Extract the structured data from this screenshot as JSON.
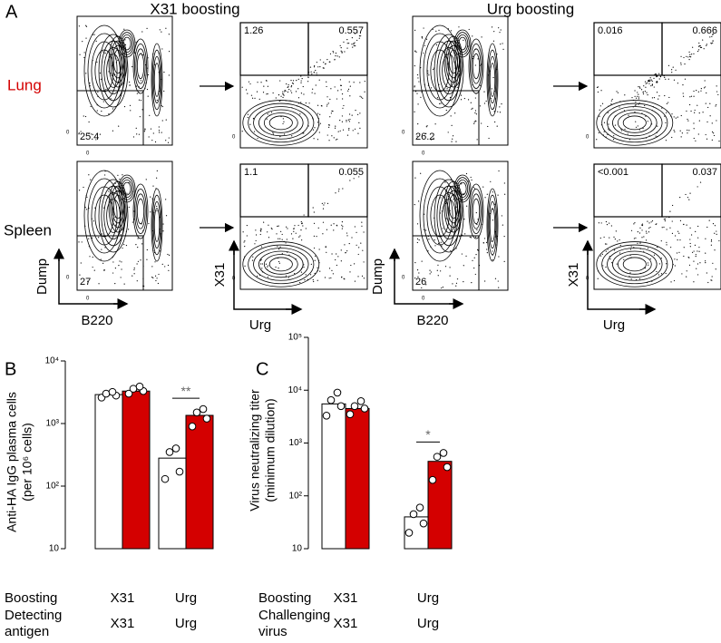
{
  "panel_a": {
    "label": "A",
    "columns": [
      "X31 boosting",
      "Urg boosting"
    ],
    "rows": [
      "Lung",
      "Spleen"
    ],
    "zero_label": "0",
    "axis_labels": {
      "dump": "Dump",
      "b220": "B220",
      "x31": "X31",
      "urg": "Urg"
    },
    "plots": [
      {
        "gate": "25.4",
        "upper_left": "1.26",
        "upper_right": "0.557"
      },
      {
        "gate": "26.2",
        "upper_left": "0.016",
        "upper_right": "0.666"
      },
      {
        "gate": "27",
        "upper_left": "1.1",
        "upper_right": "0.055"
      },
      {
        "gate": "26",
        "upper_left": "<0.001",
        "upper_right": "0.037"
      }
    ]
  },
  "chart_data": [
    {
      "type": "bar",
      "title": "B",
      "log_scale": true,
      "ylabel": [
        "Anti-HA IgG plasma cells",
        "(per 10⁶ cells)"
      ],
      "ylim": [
        10,
        10000
      ],
      "yticks": [
        {
          "value": 10000,
          "label": "10⁴"
        },
        {
          "value": 1000,
          "label": "10³"
        },
        {
          "value": 100,
          "label": "10²"
        },
        10
      ],
      "x_rows": [
        {
          "label": [
            "Boosting"
          ],
          "values": [
            "X31",
            "Urg"
          ]
        },
        {
          "label": [
            "Detecting",
            "antigen"
          ],
          "values": [
            "X31",
            "Urg"
          ]
        }
      ],
      "series": [
        {
          "color": "#ffffff",
          "values": [
            2900,
            280
          ],
          "points": [
            [
              2600,
              2800,
              3000,
              3200
            ],
            [
              130,
              170,
              350,
              400
            ]
          ]
        },
        {
          "color": "#d40000",
          "values": [
            3300,
            1350
          ],
          "points": [
            [
              3000,
              3300,
              3600,
              3900
            ],
            [
              900,
              1200,
              1500,
              1700
            ]
          ]
        }
      ],
      "significance": [
        null,
        "**"
      ]
    },
    {
      "type": "bar",
      "title": "C",
      "log_scale": true,
      "ylabel": [
        "Virus neutralizing titer",
        "(minimum dilution)"
      ],
      "ylim": [
        10,
        100000
      ],
      "yticks": [
        {
          "value": 100000,
          "label": "10⁵"
        },
        {
          "value": 10000,
          "label": "10⁴"
        },
        {
          "value": 1000,
          "label": "10³"
        },
        {
          "value": 100,
          "label": "10²"
        },
        10
      ],
      "x_rows": [
        {
          "label": [
            "Boosting"
          ],
          "values": [
            "X31",
            "Urg"
          ]
        },
        {
          "label": [
            "Challenging",
            "virus"
          ],
          "values": [
            "X31",
            "Urg"
          ]
        }
      ],
      "series": [
        {
          "color": "#ffffff",
          "values": [
            5500,
            40
          ],
          "points": [
            [
              3300,
              5000,
              6500,
              9000
            ],
            [
              20,
              30,
              45,
              60
            ]
          ]
        },
        {
          "color": "#d40000",
          "values": [
            4500,
            450
          ],
          "points": [
            [
              3500,
              4500,
              5000,
              6200
            ],
            [
              200,
              350,
              550,
              650
            ]
          ]
        }
      ],
      "significance": [
        null,
        "*"
      ]
    }
  ]
}
